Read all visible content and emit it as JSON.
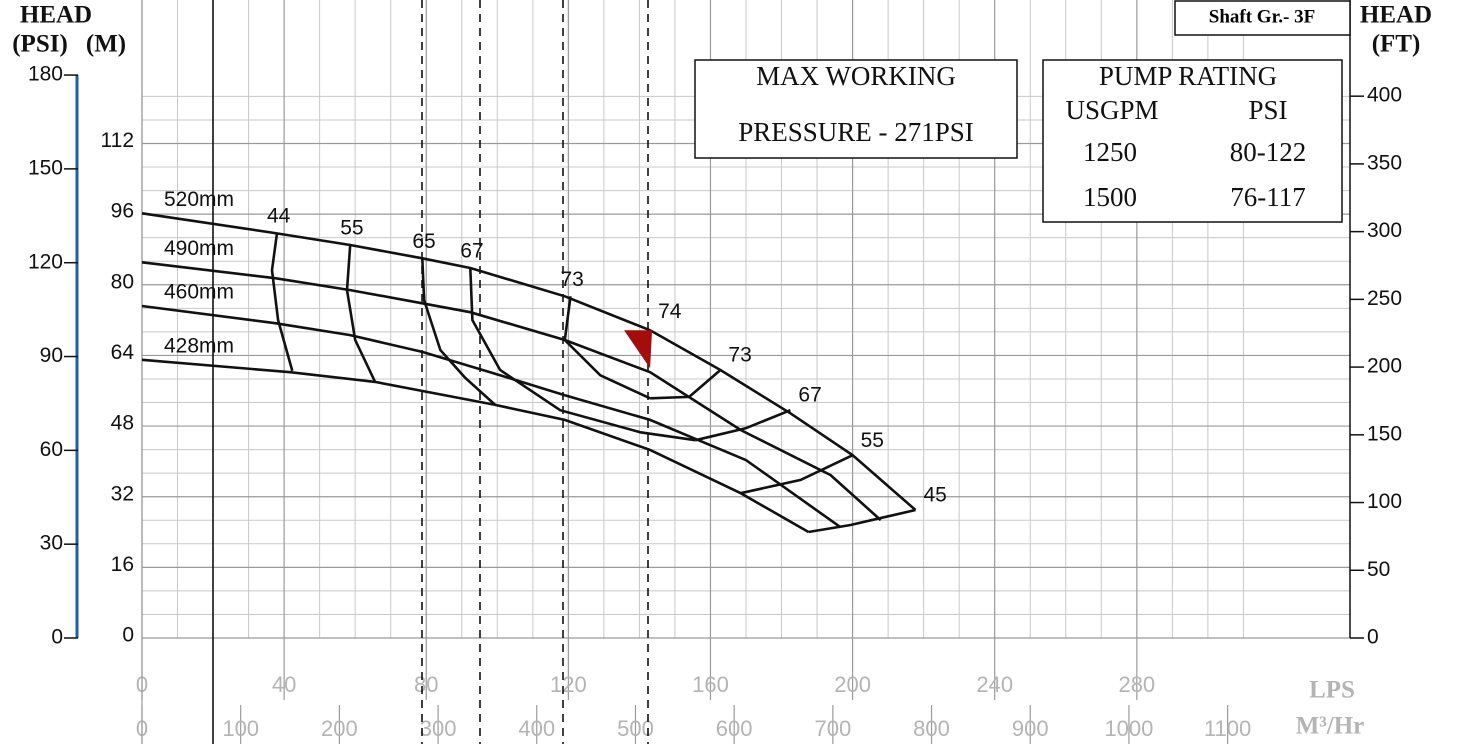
{
  "chart_data": {
    "type": "pump-curve",
    "head_left": "HEAD",
    "head_right": "HEAD",
    "axes": {
      "psi": {
        "label": "(PSI)",
        "ylim": [
          0,
          204
        ],
        "yticks": [
          0,
          30,
          60,
          90,
          120,
          150,
          180
        ],
        "color": "#1f5fa8"
      },
      "m": {
        "label": "(M)",
        "ylim": [
          0,
          144.5
        ],
        "yticks": [
          0,
          16,
          32,
          48,
          64,
          80,
          96,
          112
        ]
      },
      "ft": {
        "label": "(FT)",
        "ylim": [
          0,
          471
        ],
        "yticks": [
          0,
          50,
          100,
          150,
          200,
          250,
          300,
          350,
          400
        ]
      },
      "lps": {
        "label": "LPS",
        "xlim": [
          0,
          340
        ],
        "xticks": [
          0,
          40,
          80,
          120,
          160,
          200,
          240,
          280
        ]
      },
      "m3h": {
        "label": "M³/Hr",
        "xlim": [
          0,
          1224
        ],
        "xticks": [
          0,
          100,
          200,
          300,
          400,
          500,
          600,
          700,
          800,
          900,
          1000,
          1100
        ]
      }
    },
    "series": [
      {
        "name": "520mm",
        "x": [
          0,
          37.5,
          58.6,
          78.9,
          92.4,
          119,
          143,
          162.8,
          182.5,
          200,
          217.7
        ],
        "values": [
          96.2,
          91.7,
          89,
          86,
          83.8,
          77.4,
          69.7,
          60.7,
          50.9,
          41.4,
          29
        ]
      },
      {
        "name": "490mm",
        "x": [
          0,
          37.5,
          58.6,
          78.9,
          92.4,
          119,
          143,
          168.5,
          193.8,
          207.9
        ],
        "values": [
          85.1,
          81.5,
          78.8,
          75.8,
          73.8,
          67.5,
          60.2,
          47.1,
          36.9,
          26.7
        ]
      },
      {
        "name": "460mm",
        "x": [
          0,
          37.5,
          58.6,
          78.9,
          98,
          119,
          143,
          170,
          196.6
        ],
        "values": [
          75.2,
          71.3,
          68.6,
          64.8,
          60.2,
          55,
          49.4,
          40.3,
          25.1
        ]
      },
      {
        "name": "428mm",
        "x": [
          0,
          41.7,
          65.6,
          99.4,
          119,
          143,
          168.5,
          187.6
        ],
        "values": [
          63,
          60.2,
          58,
          52.8,
          49.4,
          42.6,
          32.8,
          24
        ]
      }
    ],
    "efficiency": [
      {
        "name": "44",
        "x": [
          42.3,
          38.3,
          36.6,
          38
        ],
        "values": [
          60.5,
          72,
          83.3,
          91.7
        ]
      },
      {
        "name": "55",
        "x": [
          65.6,
          60,
          57.7,
          58.6
        ],
        "values": [
          58,
          67.5,
          78.8,
          89
        ]
      },
      {
        "name": "65",
        "x": [
          99.4,
          91,
          84,
          79.4,
          78.9
        ],
        "values": [
          52.8,
          58.9,
          65.2,
          76.5,
          86
        ]
      },
      {
        "name": "67",
        "x": [
          155.8,
          140.3,
          117.7,
          100.8,
          93,
          92.4
        ],
        "values": [
          44.8,
          46.6,
          51.6,
          60.7,
          72,
          83.8
        ]
      },
      {
        "name": "73",
        "x": [
          143,
          129,
          119,
          120.6
        ],
        "values": [
          54.3,
          59.5,
          67.5,
          77.4
        ]
      },
      {
        "name": "73",
        "x": [
          143,
          154,
          162.8
        ],
        "values": [
          54.3,
          54.6,
          60.7
        ]
      },
      {
        "name": "67",
        "x": [
          155.8,
          169.9,
          182.5
        ],
        "values": [
          44.8,
          47.5,
          51.6
        ]
      },
      {
        "name": "55",
        "x": [
          168.5,
          185.4,
          200
        ],
        "values": [
          32.8,
          35.8,
          41.4
        ]
      },
      {
        "name": "45",
        "x": [
          187.6,
          199.4,
          217.7
        ],
        "values": [
          24,
          25.6,
          29
        ]
      }
    ],
    "bep": {
      "name": "74",
      "x": 143,
      "value": 69.7,
      "color": "#a50d0d"
    },
    "shaft": "Shaft Gr.- 3F",
    "max_working": [
      "MAX WORKING",
      "PRESSURE - 271PSI"
    ],
    "pump_rating": {
      "title": "PUMP RATING",
      "headers": [
        "USGPM",
        "PSI"
      ],
      "rows": [
        [
          "1250",
          "80-122"
        ],
        [
          "1500",
          "76-117"
        ]
      ]
    }
  }
}
